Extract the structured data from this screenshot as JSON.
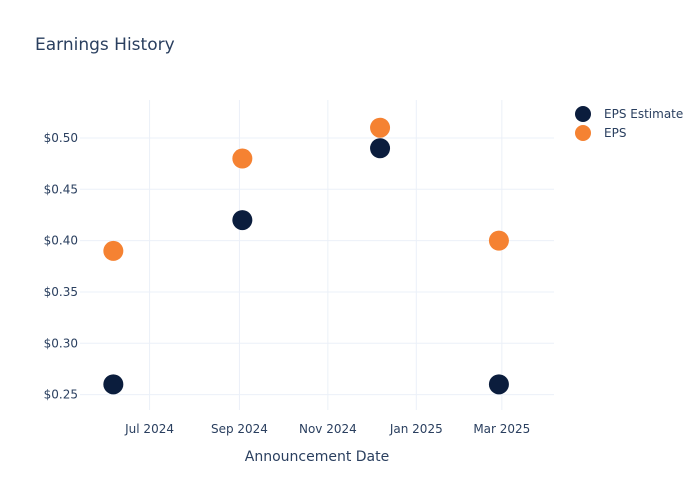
{
  "chart_data": {
    "type": "scatter",
    "title": "Earnings History",
    "xlabel": "Announcement Date",
    "ylabel": "",
    "x_ticks": [
      {
        "date": "2024-07-01",
        "label": "Jul 2024"
      },
      {
        "date": "2024-09-01",
        "label": "Sep 2024"
      },
      {
        "date": "2024-11-01",
        "label": "Nov 2024"
      },
      {
        "date": "2025-01-01",
        "label": "Jan 2025"
      },
      {
        "date": "2025-03-01",
        "label": "Mar 2025"
      }
    ],
    "y_ticks": [
      {
        "value": 0.25,
        "label": "$0.25"
      },
      {
        "value": 0.3,
        "label": "$0.30"
      },
      {
        "value": 0.35,
        "label": "$0.35"
      },
      {
        "value": 0.4,
        "label": "$0.40"
      },
      {
        "value": 0.45,
        "label": "$0.45"
      },
      {
        "value": 0.5,
        "label": "$0.50"
      }
    ],
    "xlim": [
      "2024-05-14",
      "2025-04-06"
    ],
    "ylim": [
      0.235,
      0.537
    ],
    "grid": true,
    "legend_position": "top-right",
    "series": [
      {
        "name": "EPS Estimate",
        "color": "#0b1d3d",
        "points": [
          {
            "x": "2024-06-06",
            "y": 0.26
          },
          {
            "x": "2024-09-03",
            "y": 0.42
          },
          {
            "x": "2024-12-07",
            "y": 0.49
          },
          {
            "x": "2025-02-27",
            "y": 0.26
          }
        ]
      },
      {
        "name": "EPS",
        "color": "#f58232",
        "points": [
          {
            "x": "2024-06-06",
            "y": 0.39
          },
          {
            "x": "2024-09-03",
            "y": 0.48
          },
          {
            "x": "2024-12-07",
            "y": 0.51
          },
          {
            "x": "2025-02-27",
            "y": 0.4
          }
        ]
      }
    ]
  }
}
